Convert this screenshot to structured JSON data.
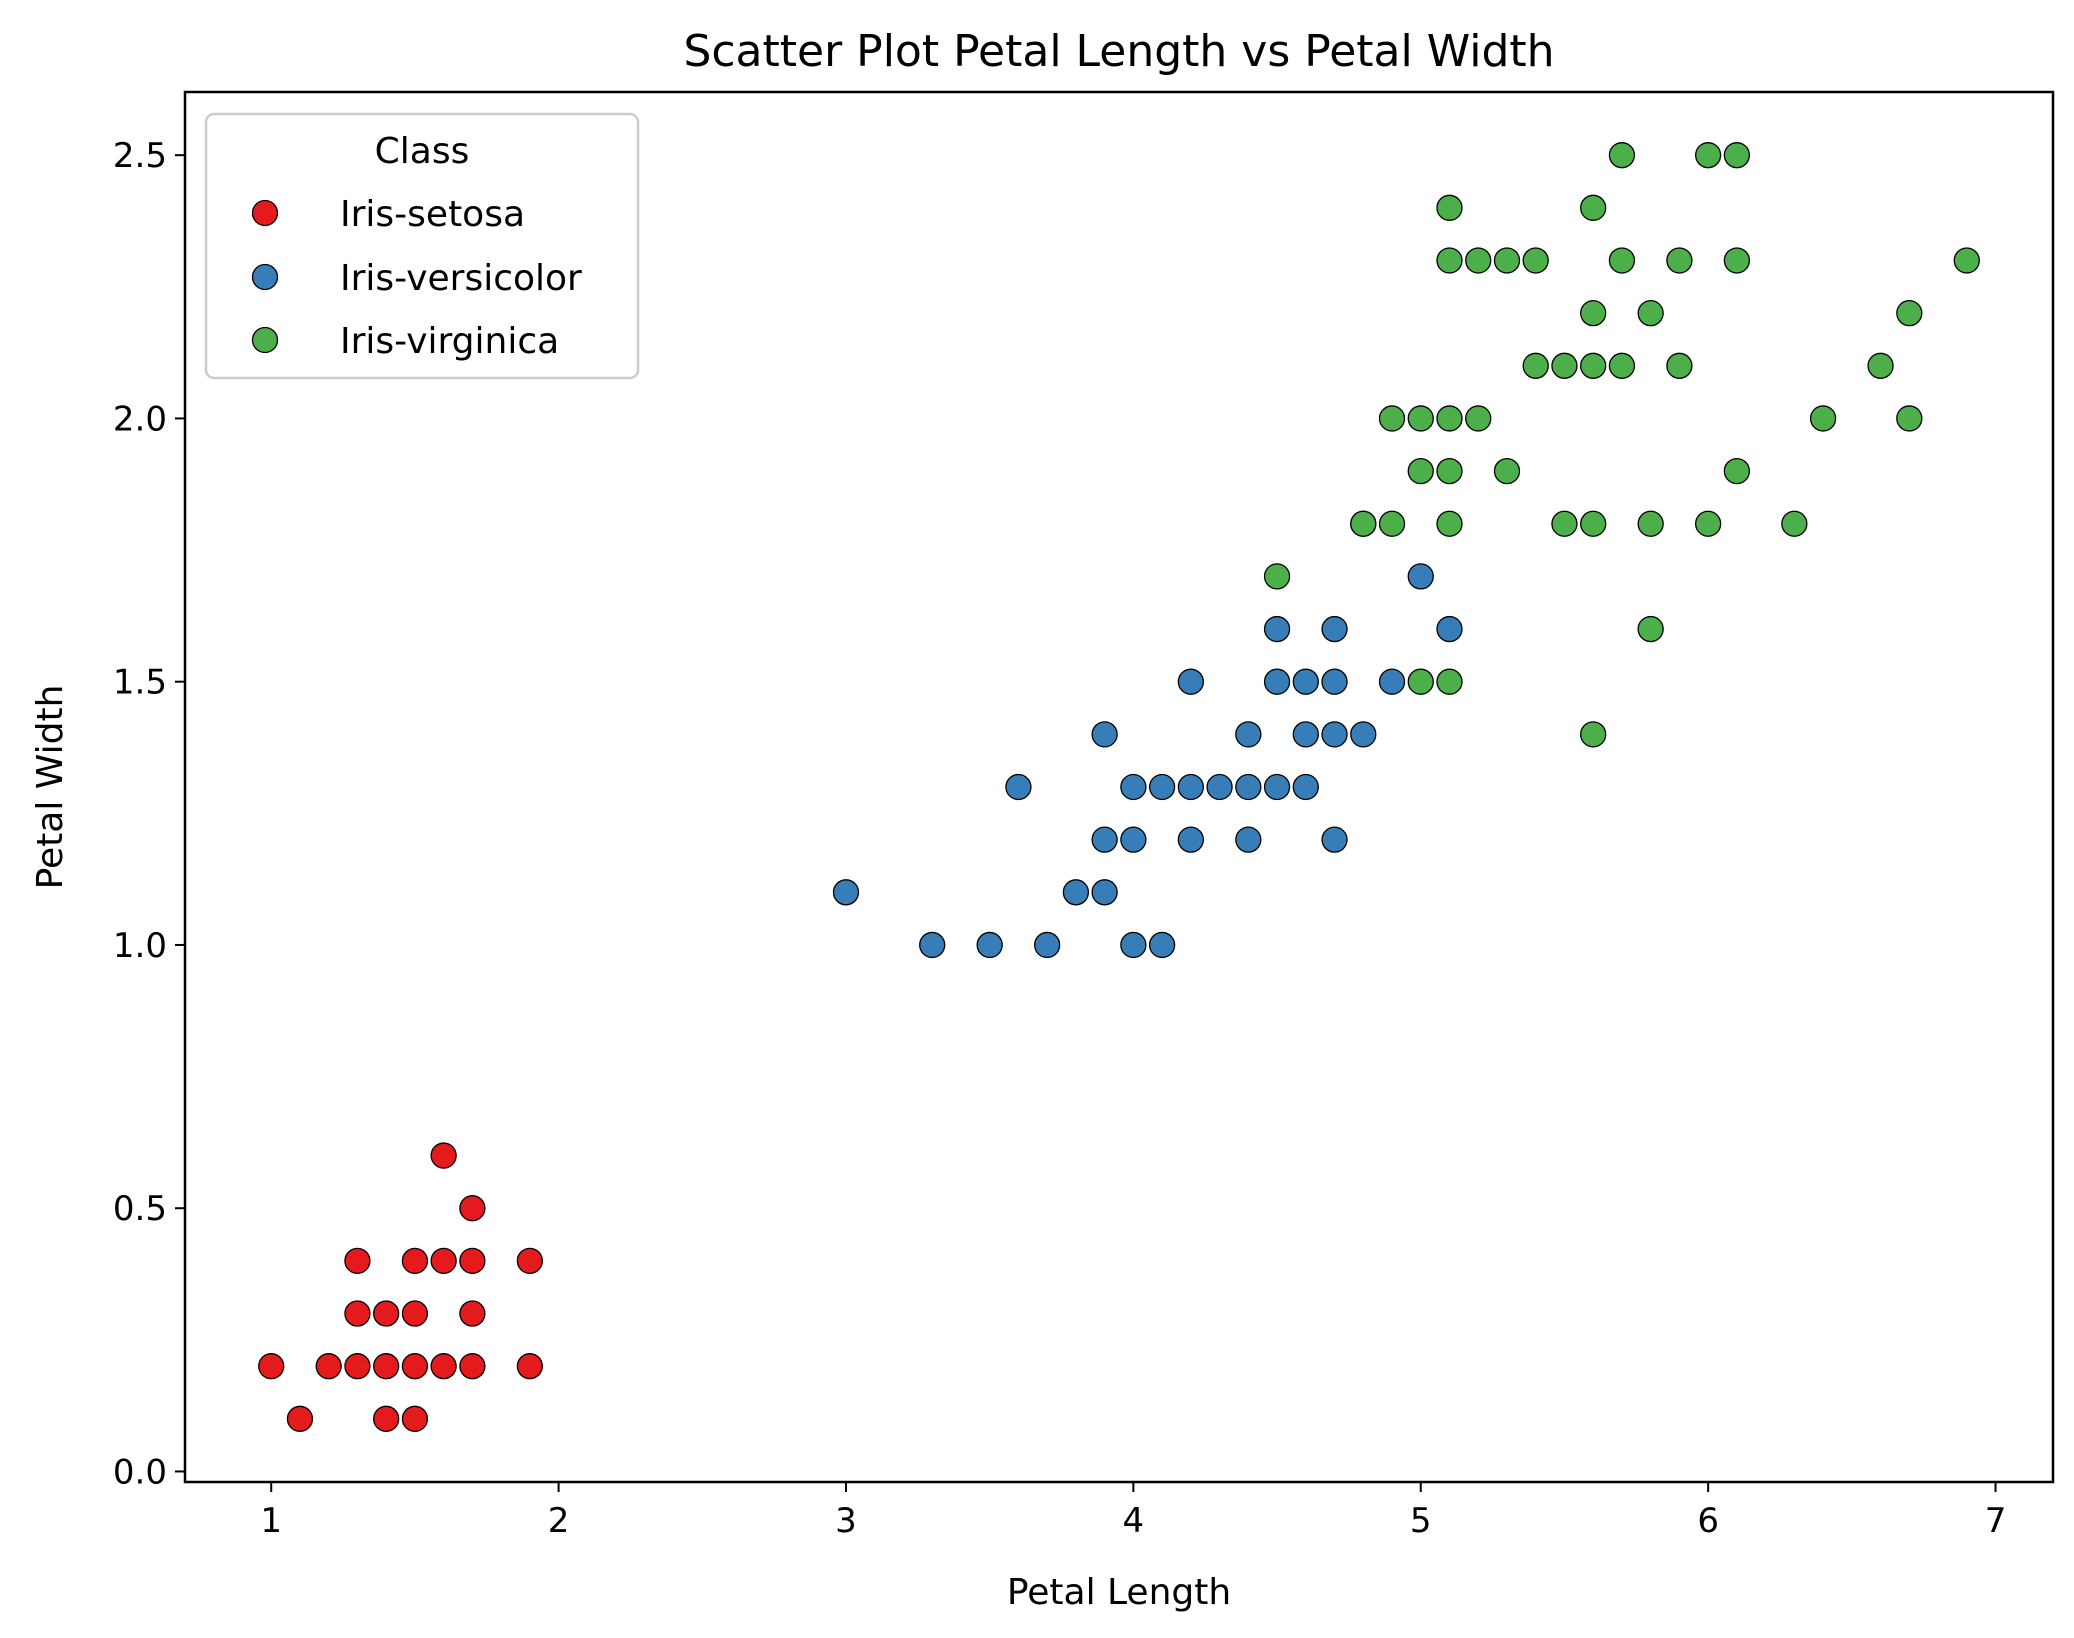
{
  "chart_data": {
    "type": "scatter",
    "title": "Scatter Plot Petal Length vs Petal Width",
    "xlabel": "Petal Length",
    "ylabel": "Petal Width",
    "xlim": [
      0.7,
      7.2
    ],
    "ylim": [
      -0.02,
      2.62
    ],
    "xticks": [
      1,
      2,
      3,
      4,
      5,
      6,
      7
    ],
    "yticks": [
      0.0,
      0.5,
      1.0,
      1.5,
      2.0,
      2.5
    ],
    "xtick_labels": [
      "1",
      "2",
      "3",
      "4",
      "5",
      "6",
      "7"
    ],
    "ytick_labels": [
      "0.0",
      "0.5",
      "1.0",
      "1.5",
      "2.0",
      "2.5"
    ],
    "grid": false,
    "legend": {
      "title": "Class",
      "position": "top-left"
    },
    "series": [
      {
        "name": "Iris-setosa",
        "color": "#e41a1c",
        "points": [
          [
            1.0,
            0.2
          ],
          [
            1.1,
            0.1
          ],
          [
            1.2,
            0.2
          ],
          [
            1.3,
            0.2
          ],
          [
            1.3,
            0.3
          ],
          [
            1.3,
            0.4
          ],
          [
            1.4,
            0.1
          ],
          [
            1.4,
            0.2
          ],
          [
            1.4,
            0.3
          ],
          [
            1.5,
            0.1
          ],
          [
            1.5,
            0.2
          ],
          [
            1.5,
            0.3
          ],
          [
            1.5,
            0.4
          ],
          [
            1.6,
            0.2
          ],
          [
            1.6,
            0.4
          ],
          [
            1.6,
            0.6
          ],
          [
            1.7,
            0.2
          ],
          [
            1.7,
            0.3
          ],
          [
            1.7,
            0.4
          ],
          [
            1.7,
            0.5
          ],
          [
            1.9,
            0.2
          ],
          [
            1.9,
            0.4
          ]
        ]
      },
      {
        "name": "Iris-versicolor",
        "color": "#377eb8",
        "points": [
          [
            3.0,
            1.1
          ],
          [
            3.3,
            1.0
          ],
          [
            3.5,
            1.0
          ],
          [
            3.6,
            1.3
          ],
          [
            3.7,
            1.0
          ],
          [
            3.8,
            1.1
          ],
          [
            3.9,
            1.1
          ],
          [
            3.9,
            1.2
          ],
          [
            3.9,
            1.4
          ],
          [
            4.0,
            1.0
          ],
          [
            4.0,
            1.2
          ],
          [
            4.0,
            1.3
          ],
          [
            4.1,
            1.0
          ],
          [
            4.1,
            1.3
          ],
          [
            4.2,
            1.2
          ],
          [
            4.2,
            1.3
          ],
          [
            4.2,
            1.5
          ],
          [
            4.3,
            1.3
          ],
          [
            4.4,
            1.2
          ],
          [
            4.4,
            1.3
          ],
          [
            4.4,
            1.4
          ],
          [
            4.5,
            1.3
          ],
          [
            4.5,
            1.5
          ],
          [
            4.5,
            1.6
          ],
          [
            4.6,
            1.3
          ],
          [
            4.6,
            1.4
          ],
          [
            4.6,
            1.5
          ],
          [
            4.7,
            1.2
          ],
          [
            4.7,
            1.4
          ],
          [
            4.7,
            1.5
          ],
          [
            4.7,
            1.6
          ],
          [
            4.8,
            1.4
          ],
          [
            4.8,
            1.8
          ],
          [
            4.9,
            1.5
          ],
          [
            5.0,
            1.7
          ],
          [
            5.1,
            1.6
          ]
        ]
      },
      {
        "name": "Iris-virginica",
        "color": "#4daf4a",
        "points": [
          [
            4.5,
            1.7
          ],
          [
            4.8,
            1.8
          ],
          [
            4.9,
            1.8
          ],
          [
            4.9,
            2.0
          ],
          [
            5.0,
            1.5
          ],
          [
            5.0,
            1.9
          ],
          [
            5.0,
            2.0
          ],
          [
            5.1,
            1.5
          ],
          [
            5.1,
            1.8
          ],
          [
            5.1,
            1.9
          ],
          [
            5.1,
            2.0
          ],
          [
            5.1,
            2.3
          ],
          [
            5.1,
            2.4
          ],
          [
            5.2,
            2.0
          ],
          [
            5.2,
            2.3
          ],
          [
            5.3,
            1.9
          ],
          [
            5.3,
            2.3
          ],
          [
            5.4,
            2.1
          ],
          [
            5.4,
            2.3
          ],
          [
            5.5,
            1.8
          ],
          [
            5.5,
            2.1
          ],
          [
            5.6,
            1.4
          ],
          [
            5.6,
            1.8
          ],
          [
            5.6,
            2.1
          ],
          [
            5.6,
            2.2
          ],
          [
            5.6,
            2.4
          ],
          [
            5.7,
            2.1
          ],
          [
            5.7,
            2.3
          ],
          [
            5.7,
            2.5
          ],
          [
            5.8,
            1.6
          ],
          [
            5.8,
            1.8
          ],
          [
            5.8,
            2.2
          ],
          [
            5.9,
            2.1
          ],
          [
            5.9,
            2.3
          ],
          [
            6.0,
            1.8
          ],
          [
            6.0,
            2.5
          ],
          [
            6.1,
            1.9
          ],
          [
            6.1,
            2.3
          ],
          [
            6.1,
            2.5
          ],
          [
            6.3,
            1.8
          ],
          [
            6.4,
            2.0
          ],
          [
            6.6,
            2.1
          ],
          [
            6.7,
            2.0
          ],
          [
            6.7,
            2.2
          ],
          [
            6.9,
            2.3
          ]
        ]
      }
    ]
  }
}
